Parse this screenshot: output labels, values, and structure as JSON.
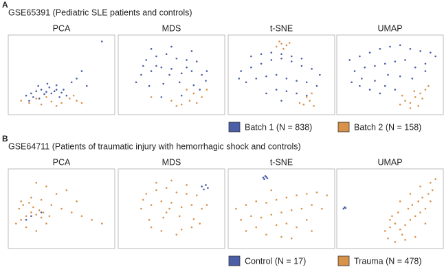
{
  "panels": [
    {
      "label": "A",
      "title": "GSE65391 (Pediatric SLE patients and controls)",
      "legend": [
        {
          "name": "Batch 1 (N = 838)",
          "color": "#4a5fa8"
        },
        {
          "name": "Batch 2 (N = 158)",
          "color": "#d9924a"
        }
      ]
    },
    {
      "label": "B",
      "title": "GSE64711 (Patients of traumatic injury with hemorrhagic shock and controls)",
      "legend": [
        {
          "name": "Control (N = 17)",
          "color": "#4a5fa8"
        },
        {
          "name": "Trauma (N = 478)",
          "color": "#d9924a"
        }
      ]
    }
  ],
  "chart_data": [
    {
      "type": "scatter",
      "title": "PCA",
      "xlim": [
        0,
        100
      ],
      "ylim": [
        0,
        100
      ],
      "series": [
        {
          "color": "#4a5fa8",
          "x": [
            15,
            20,
            25,
            30,
            35,
            40,
            45,
            50,
            55,
            22,
            28,
            33,
            38,
            43,
            48,
            18,
            27,
            36,
            45,
            52,
            60,
            65,
            70,
            75,
            90
          ],
          "values": [
            22,
            25,
            28,
            30,
            27,
            25,
            30,
            26,
            22,
            20,
            18,
            24,
            33,
            28,
            20,
            15,
            35,
            38,
            36,
            30,
            40,
            45,
            55,
            35,
            95
          ]
        },
        {
          "color": "#d9924a",
          "x": [
            10,
            18,
            30,
            40,
            50,
            58,
            65,
            70,
            45,
            35,
            25,
            62
          ],
          "values": [
            15,
            12,
            10,
            14,
            12,
            18,
            15,
            12,
            8,
            20,
            18,
            22
          ]
        }
      ]
    },
    {
      "type": "scatter",
      "title": "MDS",
      "xlim": [
        0,
        100
      ],
      "ylim": [
        0,
        100
      ],
      "series": [
        {
          "color": "#4a5fa8",
          "x": [
            20,
            30,
            40,
            50,
            60,
            70,
            80,
            25,
            35,
            45,
            55,
            65,
            75,
            85,
            15,
            28,
            42,
            58,
            72,
            84,
            30,
            50,
            70,
            40,
            60,
            22,
            78,
            48,
            35,
            65
          ],
          "values": [
            50,
            55,
            60,
            58,
            52,
            55,
            50,
            70,
            75,
            78,
            72,
            70,
            68,
            55,
            40,
            35,
            38,
            40,
            36,
            42,
            85,
            88,
            82,
            20,
            22,
            62,
            30,
            50,
            62,
            60
          ]
        },
        {
          "color": "#d9924a",
          "x": [
            60,
            68,
            75,
            80,
            72,
            55,
            85,
            50,
            30,
            65
          ],
          "values": [
            10,
            15,
            12,
            20,
            25,
            8,
            30,
            15,
            20,
            30
          ]
        }
      ]
    },
    {
      "type": "scatter",
      "title": "t-SNE",
      "xlim": [
        0,
        100
      ],
      "ylim": [
        0,
        100
      ],
      "series": [
        {
          "color": "#4a5fa8",
          "x": [
            10,
            20,
            30,
            40,
            50,
            60,
            70,
            80,
            88,
            15,
            25,
            35,
            45,
            55,
            65,
            75,
            85,
            20,
            30,
            40,
            50,
            60,
            70,
            35,
            45,
            55,
            65,
            75,
            50,
            8
          ],
          "values": [
            55,
            60,
            65,
            70,
            72,
            68,
            62,
            58,
            50,
            40,
            45,
            48,
            50,
            45,
            42,
            40,
            35,
            75,
            78,
            80,
            78,
            75,
            72,
            25,
            30,
            28,
            25,
            22,
            15,
            45
          ]
        },
        {
          "color": "#d9924a",
          "x": [
            45,
            50,
            55,
            48,
            52,
            58,
            72,
            78,
            82,
            75,
            80,
            68
          ],
          "values": [
            88,
            92,
            90,
            95,
            85,
            93,
            10,
            15,
            8,
            20,
            25,
            12
          ]
        }
      ]
    },
    {
      "type": "scatter",
      "title": "UMAP",
      "xlim": [
        0,
        100
      ],
      "ylim": [
        0,
        100
      ],
      "series": [
        {
          "color": "#4a5fa8",
          "x": [
            10,
            20,
            30,
            40,
            50,
            60,
            70,
            80,
            90,
            15,
            25,
            35,
            45,
            55,
            65,
            75,
            85,
            95,
            12,
            22,
            35,
            48,
            60,
            72,
            85,
            30,
            45,
            40,
            55,
            20
          ],
          "values": [
            70,
            75,
            80,
            85,
            88,
            90,
            85,
            82,
            80,
            55,
            60,
            62,
            65,
            68,
            70,
            60,
            65,
            75,
            40,
            45,
            42,
            50,
            48,
            45,
            55,
            30,
            35,
            25,
            30,
            35
          ]
        },
        {
          "color": "#d9924a",
          "x": [
            60,
            65,
            70,
            75,
            80,
            85,
            88,
            70,
            78,
            82,
            62,
            74
          ],
          "values": [
            10,
            15,
            12,
            20,
            25,
            30,
            35,
            5,
            8,
            18,
            22,
            28
          ]
        }
      ]
    },
    {
      "type": "scatter",
      "title": "PCA",
      "xlim": [
        0,
        100
      ],
      "ylim": [
        0,
        100
      ],
      "series": [
        {
          "color": "#d9924a",
          "x": [
            5,
            10,
            15,
            20,
            25,
            30,
            35,
            8,
            12,
            18,
            22,
            28,
            32,
            38,
            15,
            25,
            10,
            20,
            30,
            40,
            50,
            60,
            70,
            80,
            90,
            45,
            55,
            35,
            65,
            25
          ],
          "values": [
            30,
            35,
            40,
            45,
            42,
            38,
            30,
            50,
            55,
            58,
            52,
            48,
            45,
            40,
            25,
            20,
            60,
            65,
            62,
            55,
            50,
            45,
            40,
            35,
            30,
            70,
            75,
            80,
            60,
            85
          ]
        },
        {
          "color": "#4a5fa8",
          "x": [
            20,
            30,
            15
          ],
          "values": [
            40,
            45,
            35
          ]
        }
      ]
    },
    {
      "type": "scatter",
      "title": "MDS",
      "xlim": [
        0,
        100
      ],
      "ylim": [
        0,
        100
      ],
      "series": [
        {
          "color": "#d9924a",
          "x": [
            20,
            30,
            40,
            50,
            60,
            70,
            80,
            25,
            35,
            45,
            55,
            65,
            75,
            85,
            28,
            42,
            58,
            72,
            35,
            50,
            65,
            40,
            60,
            22,
            78,
            48,
            30,
            70,
            55,
            45
          ],
          "values": [
            50,
            55,
            60,
            58,
            52,
            55,
            50,
            70,
            75,
            78,
            72,
            70,
            68,
            55,
            35,
            38,
            40,
            36,
            85,
            88,
            82,
            20,
            22,
            62,
            30,
            50,
            25,
            25,
            15,
            45
          ]
        },
        {
          "color": "#4a5fa8",
          "x": [
            80,
            84,
            82,
            86
          ],
          "values": [
            80,
            82,
            76,
            78
          ]
        }
      ]
    },
    {
      "type": "scatter",
      "title": "t-SNE",
      "xlim": [
        0,
        100
      ],
      "ylim": [
        0,
        100
      ],
      "series": [
        {
          "color": "#d9924a",
          "x": [
            5,
            15,
            25,
            35,
            45,
            55,
            65,
            75,
            85,
            95,
            10,
            20,
            30,
            40,
            50,
            60,
            70,
            80,
            90,
            15,
            25,
            45,
            55,
            65,
            75,
            35,
            50,
            60,
            80,
            40
          ],
          "values": [
            50,
            55,
            60,
            58,
            62,
            65,
            68,
            70,
            72,
            68,
            35,
            40,
            38,
            42,
            45,
            48,
            50,
            55,
            50,
            20,
            25,
            28,
            30,
            25,
            35,
            15,
            12,
            10,
            20,
            75
          ]
        },
        {
          "color": "#4a5fa8",
          "x": [
            32,
            34,
            36,
            33,
            35
          ],
          "values": [
            92,
            94,
            91,
            90,
            93
          ]
        }
      ]
    },
    {
      "type": "scatter",
      "title": "UMAP",
      "xlim": [
        0,
        100
      ],
      "ylim": [
        0,
        100
      ],
      "series": [
        {
          "color": "#4a5fa8",
          "x": [
            4,
            5,
            6
          ],
          "values": [
            50,
            52,
            51
          ]
        },
        {
          "color": "#d9924a",
          "x": [
            45,
            50,
            55,
            60,
            65,
            70,
            75,
            80,
            85,
            90,
            48,
            52,
            58,
            62,
            68,
            72,
            78,
            82,
            88,
            92,
            55,
            65,
            75,
            85,
            60,
            70,
            80,
            90,
            50,
            95
          ],
          "values": [
            20,
            25,
            30,
            22,
            28,
            35,
            40,
            45,
            50,
            60,
            10,
            40,
            45,
            15,
            50,
            55,
            60,
            65,
            70,
            75,
            5,
            8,
            12,
            30,
            60,
            70,
            80,
            85,
            35,
            90
          ]
        }
      ]
    }
  ]
}
